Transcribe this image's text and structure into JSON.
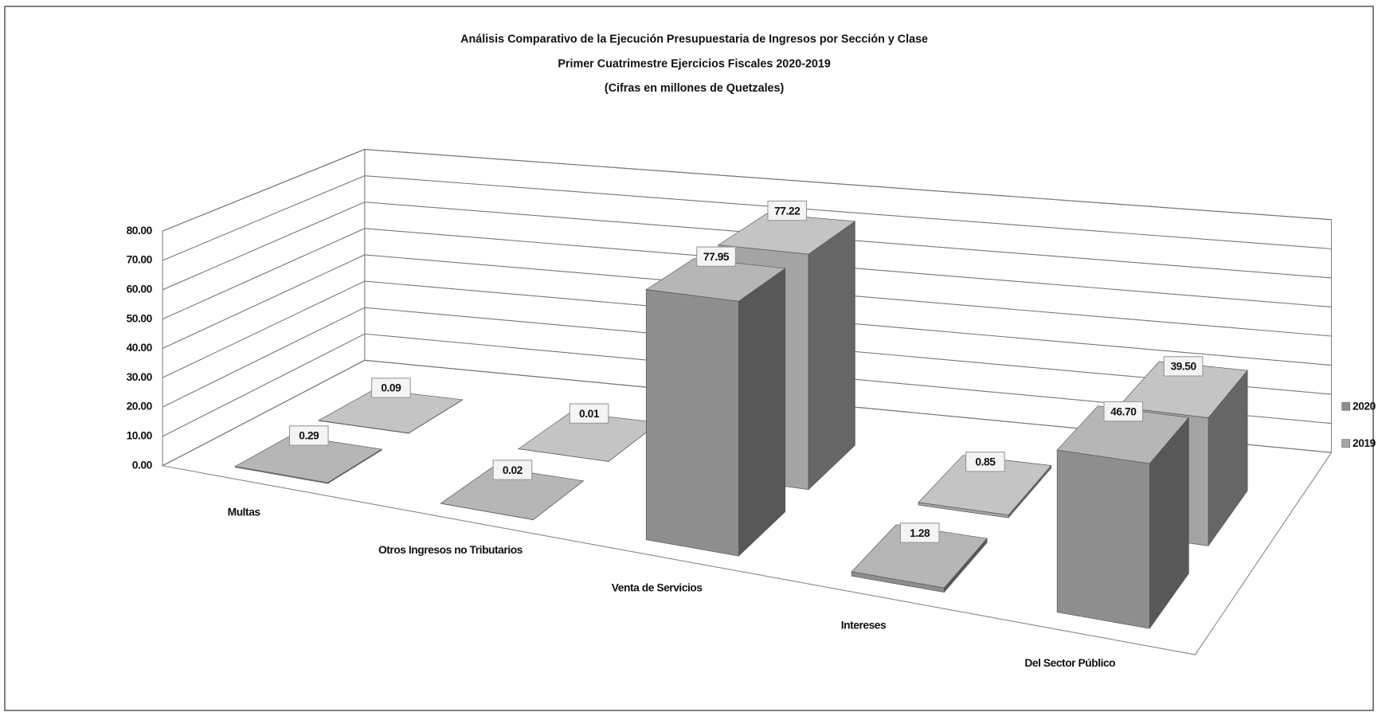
{
  "chart_data": {
    "type": "bar3d",
    "title": "Análisis Comparativo de la Ejecución Presupuestaria de Ingresos por Sección y Clase",
    "subtitle": "Primer Cuatrimestre Ejercicios Fiscales 2020-2019",
    "note": "(Cifras en millones de Quetzales)",
    "categories": [
      "Multas",
      "Otros Ingresos no Tributarios",
      "Venta de Servicios",
      "Intereses",
      "Del Sector Público"
    ],
    "series": [
      {
        "name": "2020",
        "color": "#8e8e8e",
        "values": [
          0.29,
          0.02,
          77.95,
          1.28,
          46.7
        ],
        "value_labels": [
          "0.29",
          "0.02",
          "77.95",
          "1.28",
          "46.70"
        ]
      },
      {
        "name": "2019",
        "color": "#a4a4a4",
        "values": [
          0.09,
          0.01,
          77.22,
          0.85,
          39.5
        ],
        "value_labels": [
          "0.09",
          "0.01",
          "77.22",
          "0.85",
          "39.50"
        ]
      }
    ],
    "ylim": [
      0,
      80
    ],
    "yticks": [
      {
        "value": 0,
        "label": "0.00"
      },
      {
        "value": 10,
        "label": "10.00"
      },
      {
        "value": 20,
        "label": "20.00"
      },
      {
        "value": 30,
        "label": "30.00"
      },
      {
        "value": 40,
        "label": "40.00"
      },
      {
        "value": 50,
        "label": "50.00"
      },
      {
        "value": 60,
        "label": "60.00"
      },
      {
        "value": 70,
        "label": "70.00"
      },
      {
        "value": 80,
        "label": "80.00"
      }
    ],
    "grid": true,
    "legend": "right"
  }
}
